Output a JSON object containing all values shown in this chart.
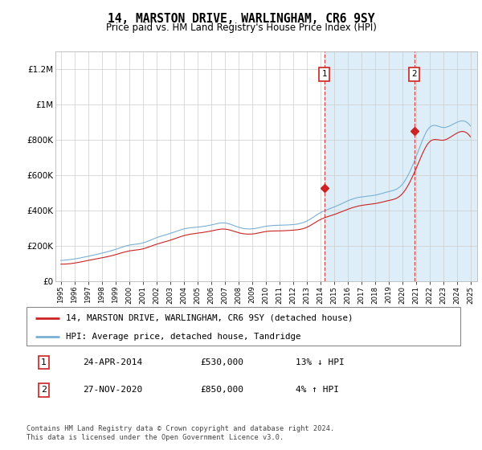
{
  "title": "14, MARSTON DRIVE, WARLINGHAM, CR6 9SY",
  "subtitle": "Price paid vs. HM Land Registry's House Price Index (HPI)",
  "ylim": [
    0,
    1300000
  ],
  "yticks": [
    0,
    200000,
    400000,
    600000,
    800000,
    1000000,
    1200000
  ],
  "ytick_labels": [
    "£0",
    "£200K",
    "£400K",
    "£600K",
    "£800K",
    "£1M",
    "£1.2M"
  ],
  "grid_color": "#cccccc",
  "hpi_color": "#7ab0d4",
  "price_color": "#cc2222",
  "shade_color": "#ddeef8",
  "marker1_year": 2014.3,
  "marker2_year": 2020.9,
  "marker1_price": 530000,
  "marker2_price": 850000,
  "legend_entries": [
    "14, MARSTON DRIVE, WARLINGHAM, CR6 9SY (detached house)",
    "HPI: Average price, detached house, Tandridge"
  ],
  "legend_colors": [
    "#cc2222",
    "#7ab0d4"
  ],
  "annotation1_num": "1",
  "annotation1_date": "24-APR-2014",
  "annotation1_price": "£530,000",
  "annotation1_hpi": "13% ↓ HPI",
  "annotation2_num": "2",
  "annotation2_date": "27-NOV-2020",
  "annotation2_price": "£850,000",
  "annotation2_hpi": "4% ↑ HPI",
  "footer": "Contains HM Land Registry data © Crown copyright and database right 2024.\nThis data is licensed under the Open Government Licence v3.0."
}
